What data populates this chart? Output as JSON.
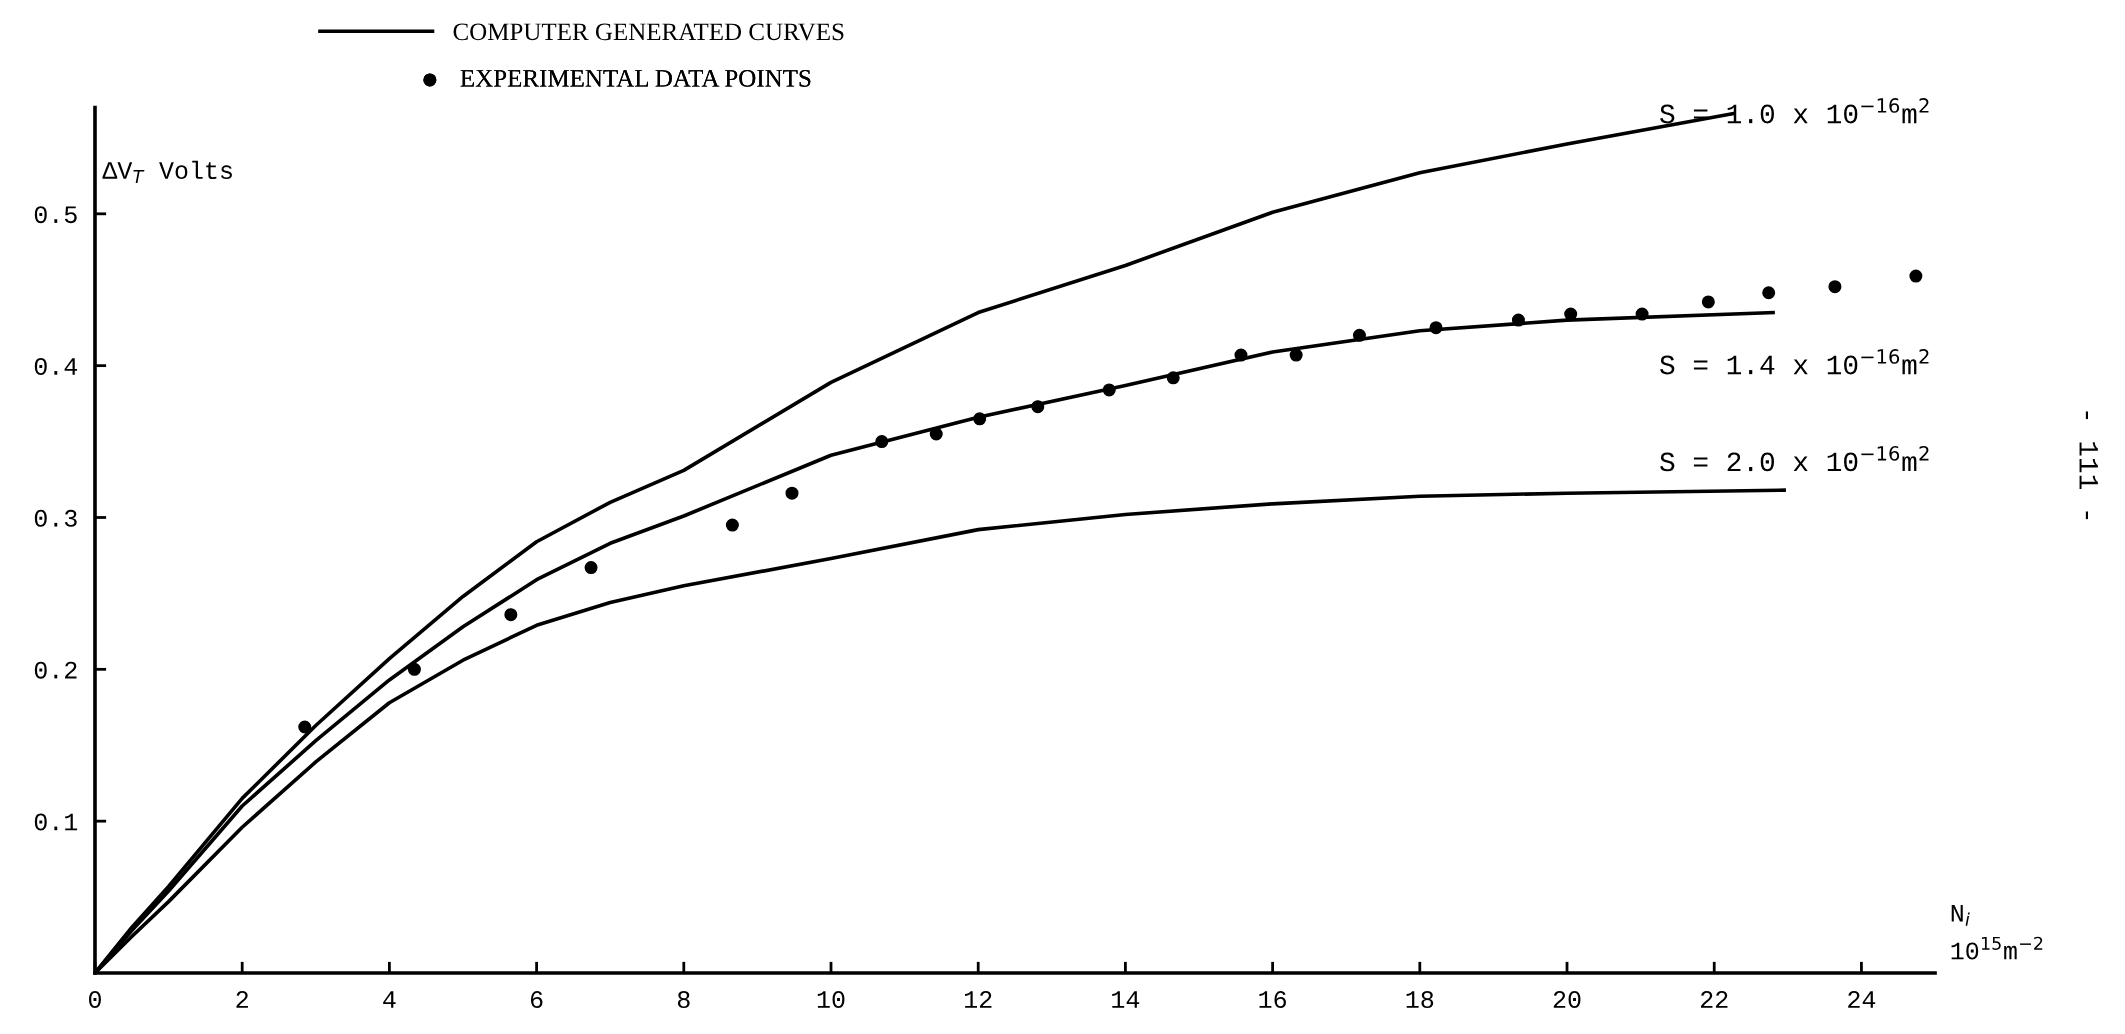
{
  "chart_data": {
    "type": "line",
    "xlabel": "N$_{i}$\n10$^{15}$m$^{−2}$",
    "ylabel": "ΔV$_{T}$ Volts",
    "xlim": [
      0,
      25
    ],
    "xticks": [
      0,
      2,
      4,
      6,
      8,
      10,
      12,
      14,
      16,
      18,
      20,
      22,
      24
    ],
    "ylim": [
      0,
      0.57
    ],
    "yticks": [
      {
        "value": 0.1,
        "label": "0.1"
      },
      {
        "value": 0.2,
        "label": "0.2"
      },
      {
        "value": 0.3,
        "label": "0.3"
      },
      {
        "value": 0.4,
        "label": "0.4"
      },
      {
        "value": 0.5,
        "label": "0.5"
      }
    ],
    "legend": "top",
    "line_style": "solid",
    "series": [
      {
        "name": "COMPUTER GENERATED CURVES",
        "color": "#000000",
        "x": [
          0,
          0.5,
          1,
          2,
          3,
          4,
          5,
          6,
          7,
          8,
          10,
          12,
          14,
          16,
          18,
          20,
          22.26
        ],
        "values": [
          0,
          0.03,
          0.057,
          0.115,
          0.163,
          0.207,
          0.248,
          0.284,
          0.31,
          0.331,
          0.389,
          0.435,
          0.466,
          0.501,
          0.527,
          0.546,
          0.566
        ]
      },
      {
        "color": "#000000",
        "x": [
          0,
          0.5,
          1,
          2,
          3,
          4,
          5,
          6,
          7,
          8,
          10,
          12,
          14,
          16,
          18,
          20,
          22.8
        ],
        "values": [
          0,
          0.028,
          0.054,
          0.11,
          0.153,
          0.193,
          0.228,
          0.259,
          0.283,
          0.301,
          0.341,
          0.366,
          0.387,
          0.409,
          0.423,
          0.43,
          0.435
        ]
      },
      {
        "color": "#000000",
        "x": [
          0,
          0.5,
          1,
          2,
          3,
          4,
          5,
          6,
          7,
          8,
          10,
          12,
          14,
          16,
          18,
          20,
          22.95
        ],
        "values": [
          0,
          0.024,
          0.047,
          0.096,
          0.139,
          0.178,
          0.206,
          0.229,
          0.244,
          0.255,
          0.273,
          0.292,
          0.302,
          0.309,
          0.314,
          0.316,
          0.318
        ]
      },
      {
        "name": "EXPERIMENTAL DATA POINTS",
        "type": "scatter",
        "marker": "circle",
        "color": "#000000",
        "x": [
          2.85,
          4.34,
          5.65,
          6.74,
          8.66,
          9.47,
          10.69,
          11.43,
          12.02,
          12.81,
          13.78,
          14.65,
          15.57,
          16.32,
          17.18,
          18.22,
          19.34,
          20.05,
          21.02,
          21.92,
          22.74,
          23.64,
          24.74
        ],
        "values": [
          0.162,
          0.2,
          0.236,
          0.267,
          0.295,
          0.316,
          0.35,
          0.355,
          0.365,
          0.373,
          0.384,
          0.392,
          0.407,
          0.407,
          0.42,
          0.425,
          0.43,
          0.434,
          0.434,
          0.442,
          0.448,
          0.452,
          0.459
        ]
      }
    ],
    "annotations": [
      "S = 1.0 x 10$^{−16}$m$^{2}$",
      "S = 1.4 x 10$^{−16}$m$^{2}$",
      "S = 2.0 x 10$^{−16}$m$^{2}$",
      "- 111 -"
    ]
  }
}
